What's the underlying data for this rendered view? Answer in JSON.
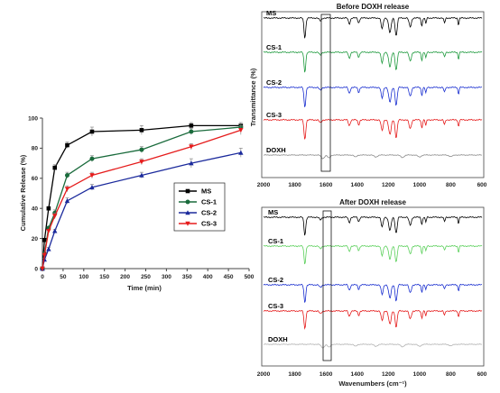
{
  "chart_data": [
    {
      "type": "line",
      "xlabel": "Time (min)",
      "ylabel": "Cumulative Release (%)",
      "xlim": [
        0,
        500
      ],
      "ylim": [
        0,
        100
      ],
      "xticks": [
        "0",
        "50",
        "100",
        "150",
        "200",
        "250",
        "300",
        "350",
        "400",
        "450",
        "500"
      ],
      "yticks": [
        "0",
        "20",
        "40",
        "60",
        "80",
        "100"
      ],
      "grid": false,
      "legend_position": "center-right",
      "x": [
        0,
        5,
        15,
        30,
        60,
        120,
        240,
        360,
        480
      ],
      "series": [
        {
          "name": "MS",
          "color": "#000000",
          "marker": "square",
          "values": [
            0,
            19,
            40,
            67,
            82,
            91,
            92,
            95,
            95
          ],
          "errors": [
            0,
            1,
            1,
            2,
            2,
            3,
            3,
            2,
            2
          ]
        },
        {
          "name": "CS-1",
          "color": "#1a6b3c",
          "marker": "circle",
          "values": [
            0,
            10,
            27,
            37,
            62,
            73,
            79,
            91,
            94
          ],
          "errors": [
            0,
            1,
            1,
            2,
            2,
            2,
            2,
            2,
            2
          ]
        },
        {
          "name": "CS-2",
          "color": "#1b2a9c",
          "marker": "triangle",
          "values": [
            0,
            6,
            13,
            25,
            45,
            54,
            62,
            70,
            77
          ],
          "errors": [
            0,
            1,
            1,
            1,
            2,
            2,
            2,
            3,
            3
          ]
        },
        {
          "name": "CS-3",
          "color": "#e51b1b",
          "marker": "triangle-down",
          "values": [
            0,
            9,
            25,
            35,
            53,
            62,
            71,
            81,
            92
          ],
          "errors": [
            0,
            1,
            1,
            2,
            2,
            2,
            2,
            2,
            3
          ]
        }
      ]
    },
    {
      "type": "line",
      "title": "Before DOXH release",
      "xlabel": "",
      "ylabel": "Transmittance (%)",
      "xlim": [
        2000,
        600
      ],
      "xticks": [
        "2000",
        "1800",
        "1600",
        "1400",
        "1200",
        "1000",
        "800",
        "600"
      ],
      "highlight_box_wavenumber": [
        1640,
        1590
      ],
      "traces": [
        {
          "name": "MS",
          "color": "#000000"
        },
        {
          "name": "CS-1",
          "color": "#1f9a3e"
        },
        {
          "name": "CS-2",
          "color": "#1a2fd0"
        },
        {
          "name": "CS-3",
          "color": "#e51b1b"
        },
        {
          "name": "DOXH",
          "color": "#8a8a8a"
        }
      ]
    },
    {
      "type": "line",
      "title": "After DOXH release",
      "xlabel": "Wavenumbers (cm⁻¹)",
      "ylabel": "",
      "xlim": [
        2000,
        600
      ],
      "xticks": [
        "2000",
        "1800",
        "1600",
        "1400",
        "1200",
        "1000",
        "800",
        "600"
      ],
      "highlight_box_wavenumber": [
        1640,
        1590
      ],
      "traces": [
        {
          "name": "MS",
          "color": "#000000"
        },
        {
          "name": "CS-1",
          "color": "#5cd05c"
        },
        {
          "name": "CS-2",
          "color": "#1a2fd0"
        },
        {
          "name": "CS-3",
          "color": "#e51b1b"
        },
        {
          "name": "DOXH",
          "color": "#b0b0b0"
        }
      ]
    }
  ]
}
